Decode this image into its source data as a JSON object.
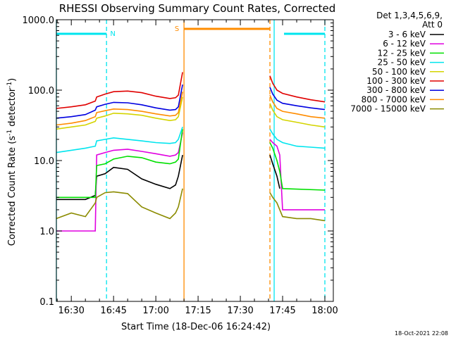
{
  "chart_data": {
    "type": "line",
    "title": "RHESSI Observing Summary Count Rates, Corrected",
    "xlabel": "Start Time (18-Dec-06 16:24:42)",
    "ylabel": "Corrected Count Rate (s⁻¹ detector⁻¹)",
    "ylabel_main": "Corrected Count Rate (s",
    "ylabel_sup1": "-1",
    "ylabel_mid": " detector",
    "ylabel_sup2": "-1",
    "ylabel_end": ")",
    "y_scale": "log",
    "ylim": [
      0.1,
      1000
    ],
    "xlim": [
      "16:24:42",
      "18:03:00"
    ],
    "x_ticks": [
      "16:30",
      "16:45",
      "17:00",
      "17:15",
      "17:30",
      "17:45",
      "18:00"
    ],
    "y_ticks": [
      "0.1",
      "1.0",
      "10.0",
      "100.0",
      "1000.0"
    ],
    "legend_header": [
      "Det 1,3,4,5,6,9,",
      "Att 0"
    ],
    "legend_position": "right",
    "footer_date": "18-Oct-2021 22:08",
    "flags": [
      {
        "label": "N",
        "color": "#00e5ee",
        "segments": [
          [
            "16:24:42",
            "16:42:30"
          ],
          [
            "17:45:30",
            "18:00:00"
          ]
        ]
      },
      {
        "label": "S",
        "color": "#ff8c00",
        "segments": [
          [
            "17:10:00",
            "17:40:30"
          ]
        ]
      }
    ],
    "vertical_lines": [
      {
        "x": "16:24:42",
        "color": "#00e5ee",
        "style": "solid"
      },
      {
        "x": "16:42:30",
        "color": "#00e5ee",
        "style": "dashed"
      },
      {
        "x": "17:10:00",
        "color": "#ff8c00",
        "style": "solid"
      },
      {
        "x": "17:40:30",
        "color": "#ff8c00",
        "style": "dashed"
      },
      {
        "x": "17:42:00",
        "color": "#00e5ee",
        "style": "solid"
      },
      {
        "x": "18:00:00",
        "color": "#00e5ee",
        "style": "dashed"
      }
    ],
    "series": [
      {
        "name": "3 - 6 keV",
        "color": "#000000",
        "points": [
          [
            "16:24:42",
            2.8
          ],
          [
            "16:35:00",
            2.8
          ],
          [
            "16:38:30",
            3.2
          ],
          [
            "16:39:00",
            6.0
          ],
          [
            "16:42:00",
            6.5
          ],
          [
            "16:45:00",
            8.0
          ],
          [
            "16:50:00",
            7.5
          ],
          [
            "16:55:00",
            5.5
          ],
          [
            "17:00:00",
            4.6
          ],
          [
            "17:05:00",
            4.0
          ],
          [
            "17:07:00",
            4.5
          ],
          [
            "17:08:00",
            6.0
          ],
          [
            "17:09:30",
            12
          ],
          null,
          [
            "17:40:30",
            12
          ],
          [
            "17:41:30",
            9
          ],
          [
            "17:43:00",
            6
          ],
          [
            "17:44:00",
            4
          ]
        ]
      },
      {
        "name": "6 - 12 keV",
        "color": "#e000e0",
        "points": [
          [
            "16:24:42",
            1.0
          ],
          [
            "16:35:00",
            1.0
          ],
          [
            "16:38:30",
            1.0
          ],
          [
            "16:39:00",
            12
          ],
          [
            "16:42:00",
            13
          ],
          [
            "16:45:00",
            14
          ],
          [
            "16:50:00",
            14.5
          ],
          [
            "16:55:00",
            13.5
          ],
          [
            "17:00:00",
            12.5
          ],
          [
            "17:05:00",
            11.5
          ],
          [
            "17:07:00",
            12
          ],
          [
            "17:08:00",
            13
          ],
          [
            "17:09:30",
            25
          ],
          null,
          [
            "17:40:30",
            20
          ],
          [
            "17:41:30",
            18
          ],
          [
            "17:43:00",
            16
          ],
          [
            "17:44:00",
            12
          ],
          [
            "17:45:00",
            2.0
          ],
          [
            "18:00:00",
            2.0
          ]
        ]
      },
      {
        "name": "12 - 25 keV",
        "color": "#00e000",
        "points": [
          [
            "16:24:42",
            3.0
          ],
          [
            "16:35:00",
            3.0
          ],
          [
            "16:38:30",
            3.0
          ],
          [
            "16:39:00",
            8.5
          ],
          [
            "16:42:00",
            9.0
          ],
          [
            "16:45:00",
            10.5
          ],
          [
            "16:50:00",
            11.5
          ],
          [
            "16:55:00",
            11.0
          ],
          [
            "17:00:00",
            9.5
          ],
          [
            "17:05:00",
            9.0
          ],
          [
            "17:07:00",
            9.5
          ],
          [
            "17:08:00",
            10.5
          ],
          [
            "17:09:30",
            28
          ],
          null,
          [
            "17:40:30",
            18
          ],
          [
            "17:41:30",
            15
          ],
          [
            "17:43:00",
            10
          ],
          [
            "17:44:00",
            7
          ],
          [
            "17:45:00",
            4.0
          ],
          [
            "18:00:00",
            3.8
          ]
        ]
      },
      {
        "name": "25 - 50 keV",
        "color": "#00e5ee",
        "points": [
          [
            "16:24:42",
            13
          ],
          [
            "16:30:00",
            14
          ],
          [
            "16:35:00",
            15
          ],
          [
            "16:38:30",
            16
          ],
          [
            "16:39:00",
            19
          ],
          [
            "16:42:00",
            20
          ],
          [
            "16:45:00",
            21
          ],
          [
            "16:50:00",
            20
          ],
          [
            "16:55:00",
            19
          ],
          [
            "17:00:00",
            18
          ],
          [
            "17:05:00",
            17.5
          ],
          [
            "17:07:00",
            18
          ],
          [
            "17:08:00",
            20
          ],
          [
            "17:09:30",
            30
          ],
          null,
          [
            "17:40:30",
            28
          ],
          [
            "17:41:30",
            24
          ],
          [
            "17:43:00",
            20
          ],
          [
            "17:45:00",
            18
          ],
          [
            "17:50:00",
            16
          ],
          [
            "17:55:00",
            15.5
          ],
          [
            "18:00:00",
            15
          ]
        ]
      },
      {
        "name": "50 - 100 keV",
        "color": "#d4d400",
        "points": [
          [
            "16:24:42",
            28
          ],
          [
            "16:30:00",
            30
          ],
          [
            "16:35:00",
            32
          ],
          [
            "16:38:30",
            36
          ],
          [
            "16:39:00",
            40
          ],
          [
            "16:42:00",
            43
          ],
          [
            "16:45:00",
            47
          ],
          [
            "16:50:00",
            46
          ],
          [
            "16:55:00",
            44
          ],
          [
            "17:00:00",
            40
          ],
          [
            "17:05:00",
            37
          ],
          [
            "17:07:00",
            38
          ],
          [
            "17:08:00",
            42
          ],
          [
            "17:09:30",
            80
          ],
          null,
          [
            "17:40:30",
            65
          ],
          [
            "17:41:30",
            52
          ],
          [
            "17:43:00",
            42
          ],
          [
            "17:45:00",
            38
          ],
          [
            "17:50:00",
            35
          ],
          [
            "17:55:00",
            32
          ],
          [
            "18:00:00",
            30
          ]
        ]
      },
      {
        "name": "100 - 300 keV",
        "color": "#e00000",
        "points": [
          [
            "16:24:42",
            55
          ],
          [
            "16:30:00",
            58
          ],
          [
            "16:35:00",
            62
          ],
          [
            "16:38:30",
            70
          ],
          [
            "16:39:00",
            80
          ],
          [
            "16:42:00",
            88
          ],
          [
            "16:45:00",
            95
          ],
          [
            "16:50:00",
            97
          ],
          [
            "16:55:00",
            92
          ],
          [
            "17:00:00",
            82
          ],
          [
            "17:05:00",
            76
          ],
          [
            "17:07:00",
            78
          ],
          [
            "17:08:00",
            85
          ],
          [
            "17:09:30",
            180
          ],
          null,
          [
            "17:40:30",
            160
          ],
          [
            "17:41:30",
            125
          ],
          [
            "17:43:00",
            100
          ],
          [
            "17:45:00",
            90
          ],
          [
            "17:50:00",
            80
          ],
          [
            "17:55:00",
            73
          ],
          [
            "18:00:00",
            68
          ]
        ]
      },
      {
        "name": "300 - 800 keV",
        "color": "#0000e0",
        "points": [
          [
            "16:24:42",
            40
          ],
          [
            "16:30:00",
            42
          ],
          [
            "16:35:00",
            45
          ],
          [
            "16:38:30",
            52
          ],
          [
            "16:39:00",
            58
          ],
          [
            "16:42:00",
            63
          ],
          [
            "16:45:00",
            67
          ],
          [
            "16:50:00",
            66
          ],
          [
            "16:55:00",
            62
          ],
          [
            "17:00:00",
            56
          ],
          [
            "17:05:00",
            52
          ],
          [
            "17:07:00",
            53
          ],
          [
            "17:08:00",
            58
          ],
          [
            "17:09:30",
            120
          ],
          null,
          [
            "17:40:30",
            110
          ],
          [
            "17:41:30",
            88
          ],
          [
            "17:43:00",
            72
          ],
          [
            "17:45:00",
            65
          ],
          [
            "17:50:00",
            60
          ],
          [
            "17:55:00",
            56
          ],
          [
            "18:00:00",
            53
          ]
        ]
      },
      {
        "name": "800 - 7000 keV",
        "color": "#ff8c00",
        "points": [
          [
            "16:24:42",
            32
          ],
          [
            "16:30:00",
            34
          ],
          [
            "16:35:00",
            37
          ],
          [
            "16:38:30",
            42
          ],
          [
            "16:39:00",
            48
          ],
          [
            "16:42:00",
            51
          ],
          [
            "16:45:00",
            54
          ],
          [
            "16:50:00",
            53
          ],
          [
            "16:55:00",
            50
          ],
          [
            "17:00:00",
            46
          ],
          [
            "17:05:00",
            43
          ],
          [
            "17:07:00",
            44
          ],
          [
            "17:08:00",
            48
          ],
          [
            "17:09:30",
            95
          ],
          null,
          [
            "17:40:30",
            85
          ],
          [
            "17:41:30",
            68
          ],
          [
            "17:43:00",
            55
          ],
          [
            "17:45:00",
            50
          ],
          [
            "17:50:00",
            46
          ],
          [
            "17:55:00",
            42
          ],
          [
            "18:00:00",
            40
          ]
        ]
      },
      {
        "name": "7000 - 15000 keV",
        "color": "#8b8b00",
        "points": [
          [
            "16:24:42",
            1.5
          ],
          [
            "16:30:00",
            1.8
          ],
          [
            "16:35:00",
            1.6
          ],
          [
            "16:38:30",
            2.5
          ],
          [
            "16:39:00",
            3.0
          ],
          [
            "16:42:00",
            3.5
          ],
          [
            "16:45:00",
            3.6
          ],
          [
            "16:50:00",
            3.4
          ],
          [
            "16:55:00",
            2.2
          ],
          [
            "17:00:00",
            1.8
          ],
          [
            "17:05:00",
            1.5
          ],
          [
            "17:07:00",
            1.8
          ],
          [
            "17:08:00",
            2.2
          ],
          [
            "17:09:30",
            4.0
          ],
          null,
          [
            "17:40:30",
            3.5
          ],
          [
            "17:41:30",
            3.0
          ],
          [
            "17:43:00",
            2.5
          ],
          [
            "17:45:00",
            1.6
          ],
          [
            "17:50:00",
            1.5
          ],
          [
            "17:55:00",
            1.5
          ],
          [
            "18:00:00",
            1.4
          ]
        ]
      }
    ]
  }
}
